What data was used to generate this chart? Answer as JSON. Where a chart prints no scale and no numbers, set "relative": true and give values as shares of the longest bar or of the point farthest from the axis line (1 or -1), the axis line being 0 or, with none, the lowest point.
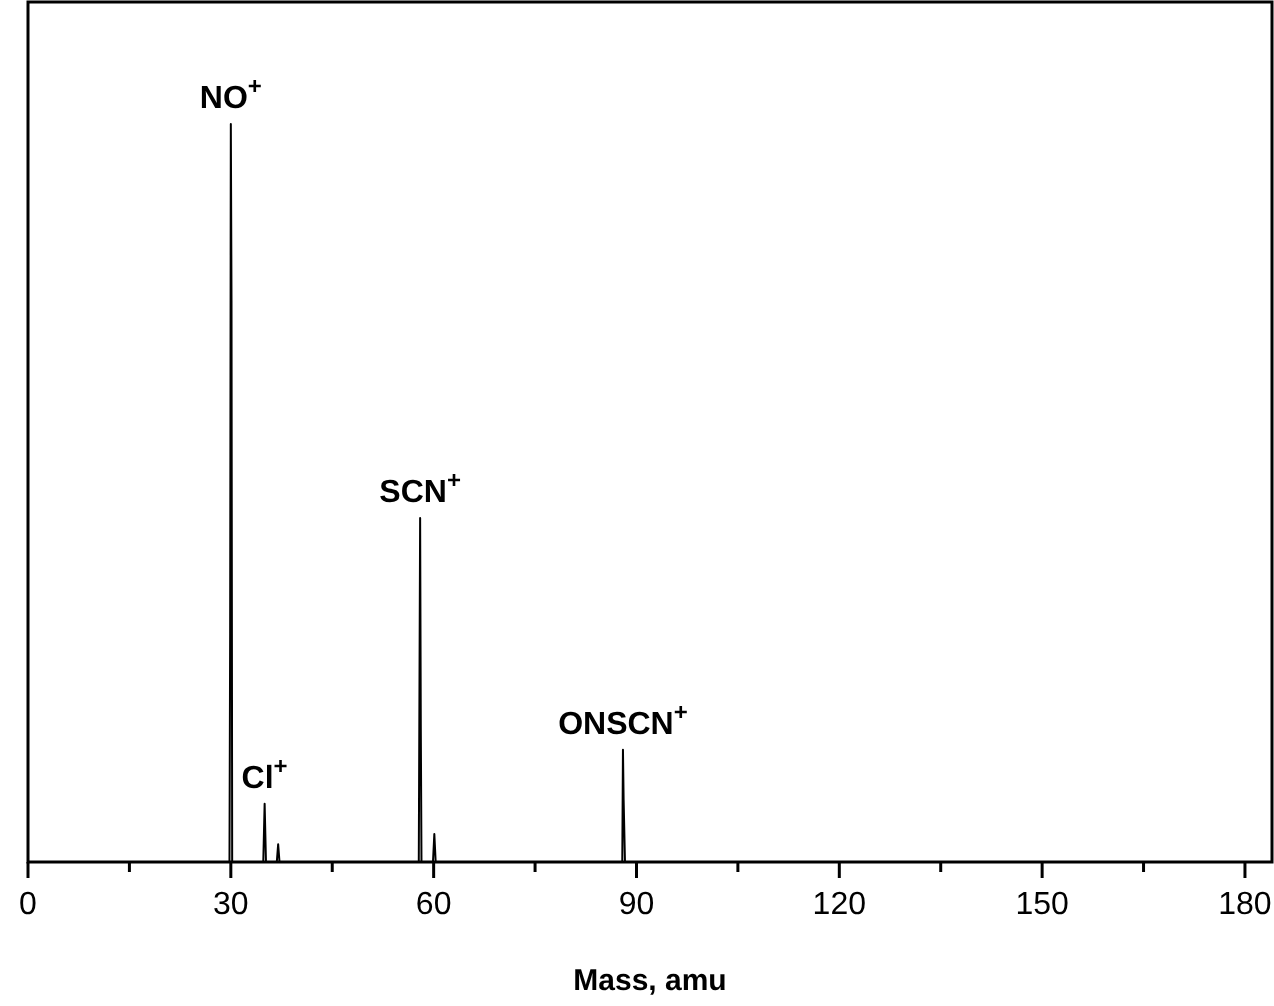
{
  "chart_data": {
    "type": "line",
    "xlabel": "Mass, amu",
    "relative": true,
    "xlim": [
      0,
      184
    ],
    "xticks": [
      0,
      {
        "value": 15,
        "label": null
      },
      30,
      {
        "value": 45,
        "label": null
      },
      60,
      {
        "value": 75,
        "label": null
      },
      90,
      {
        "value": 105,
        "label": null
      },
      120,
      {
        "value": 135,
        "label": null
      },
      150,
      {
        "value": 165,
        "label": null
      },
      180
    ],
    "series": [
      {
        "color": "#000000",
        "x": [
          0,
          29.8,
          29.9,
          30,
          30.1,
          30.2,
          34.8,
          35,
          35.2,
          36.8,
          37,
          37.2,
          57.8,
          58,
          58.1,
          58.2,
          59.9,
          60.1,
          60.3,
          87.9,
          88,
          88.1,
          88.3,
          184
        ],
        "values": [
          0,
          0,
          0.31,
          1,
          0.76,
          0,
          0,
          0.079,
          0,
          0,
          0.024,
          0,
          0,
          0.466,
          0.18,
          0,
          0,
          0.038,
          0,
          0,
          0.152,
          0.084,
          0,
          0
        ]
      }
    ],
    "annotations": [
      {
        "text": "NO$^{+}$",
        "x": 30,
        "y": 1
      },
      {
        "text": "Cl$^{+}$",
        "x": 35,
        "y": 0.079
      },
      {
        "text": "SCN$^{+}$",
        "x": 58,
        "y": 0.466
      },
      {
        "text": "ONSCN$^{+}$",
        "x": 88,
        "y": 0.152
      }
    ],
    "grid": false,
    "marker": "none",
    "line_style": "solid"
  }
}
